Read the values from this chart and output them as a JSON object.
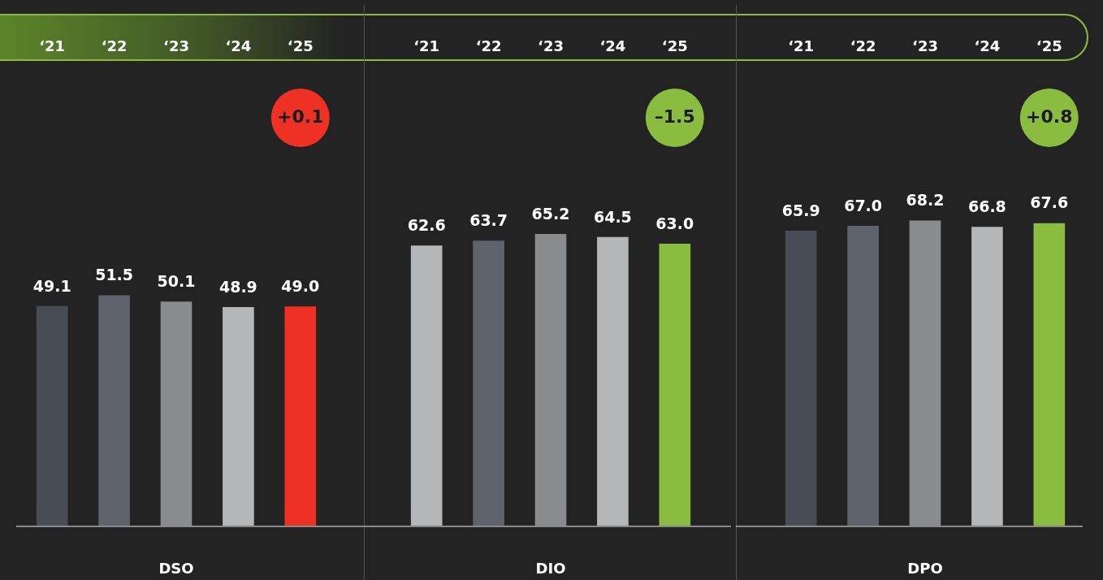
{
  "chart_data": [
    {
      "type": "bar",
      "xlabel": "DSO",
      "categories": [
        "‘21",
        "‘22",
        "‘23",
        "‘24",
        "‘25"
      ],
      "values": [
        49.1,
        51.5,
        50.1,
        48.9,
        49.0
      ],
      "colors": [
        "#484c55",
        "#5f636b",
        "#898b8f",
        "#b4b6b7",
        "#ee3124"
      ],
      "value_labels": [
        "49.1",
        "51.5",
        "50.1",
        "48.9",
        "49.0"
      ],
      "tick_labels": "x",
      "annotations": [
        "+0.1"
      ]
    },
    {
      "type": "bar",
      "xlabel": "DIO",
      "categories": [
        "‘21",
        "‘22",
        "‘23",
        "‘24",
        "‘25"
      ],
      "values": [
        62.6,
        63.7,
        65.2,
        64.5,
        63.0
      ],
      "colors": [
        "#b4b6b7",
        "#5f636b",
        "#898b8f",
        "#b4b6b7",
        "#8abd3f"
      ],
      "value_labels": [
        "62.6",
        "63.7",
        "65.2",
        "64.5",
        "63.0"
      ],
      "tick_labels": "x",
      "annotations": [
        "–1.5"
      ]
    },
    {
      "type": "bar",
      "xlabel": "DPO",
      "categories": [
        "‘21",
        "‘22",
        "‘23",
        "‘24",
        "‘25"
      ],
      "values": [
        65.9,
        67.0,
        68.2,
        66.8,
        67.6
      ],
      "colors": [
        "#484c55",
        "#5f636b",
        "#898b8f",
        "#b4b6b7",
        "#8abd3f"
      ],
      "value_labels": [
        "65.9",
        "67.0",
        "68.2",
        "66.8",
        "67.6"
      ],
      "tick_labels": "x",
      "annotations": [
        "+0.8"
      ]
    }
  ]
}
